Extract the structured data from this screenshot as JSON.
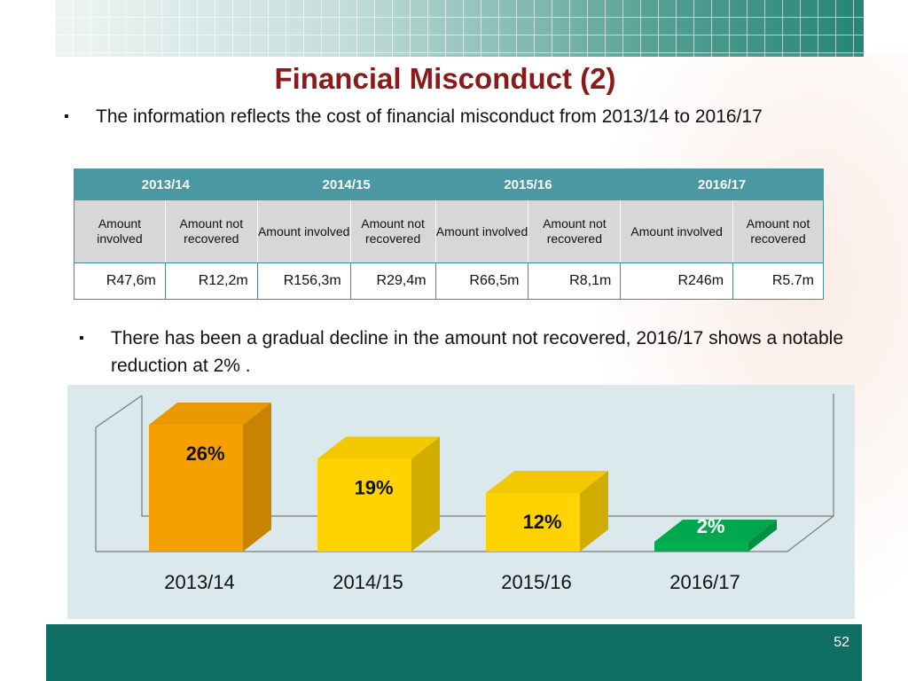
{
  "slide": {
    "title": "Financial Misconduct (2)",
    "page_number": "52",
    "bullets": [
      "The information reflects the cost of financial misconduct from 2013/14 to 2016/17",
      "There has been a gradual decline in the amount not recovered, 2016/17 shows a notable reduction at 2% ."
    ],
    "bullet_marker": "▪"
  },
  "table": {
    "years": [
      "2013/14",
      "2014/15",
      "2015/16",
      "2016/17"
    ],
    "subheaders": [
      "Amount involved",
      "Amount not recovered",
      "Amount involved",
      "Amount not recovered",
      "Amount involved",
      "Amount not recovered",
      "Amount involved",
      "Amount not recovered"
    ],
    "values": [
      "R47,6m",
      "R12,2m",
      "R156,3m",
      "R29,4m",
      "R66,5m",
      "R8,1m",
      "R246m",
      "R5.7m"
    ]
  },
  "colors": {
    "title": "#8b1a1a",
    "table_header": "#4a99a2",
    "bar_2013": "#f5a000",
    "bar_2014": "#ffd300",
    "bar_2015": "#ffd300",
    "bar_2016": "#00b050",
    "footer": "#0f6e62"
  },
  "chart_data": {
    "type": "bar",
    "categories": [
      "2013/14",
      "2014/15",
      "2015/16",
      "2016/17"
    ],
    "values": [
      26,
      19,
      12,
      2
    ],
    "data_labels": [
      "26%",
      "19%",
      "12%",
      "2%"
    ],
    "title": "",
    "xlabel": "",
    "ylabel": "",
    "ylim": [
      0,
      30
    ],
    "style": "3d",
    "grid": false
  }
}
